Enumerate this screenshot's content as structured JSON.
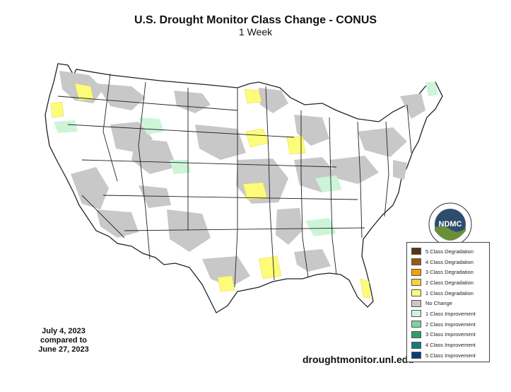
{
  "header": {
    "title": "U.S. Drought Monitor Class Change - CONUS",
    "subtitle": "1 Week"
  },
  "dates": {
    "line1": "July 4, 2023",
    "line2": "compared to",
    "line3": "June 27, 2023"
  },
  "website": "droughtmonitor.unl.edu",
  "logo": {
    "text": "NDMC",
    "ring_text": "National Drought Mitigation Center"
  },
  "legend": [
    {
      "label": "5 Class Degradation",
      "color": "#5a3310"
    },
    {
      "label": "4 Class Degradation",
      "color": "#9a5a10"
    },
    {
      "label": "3 Class Degradation",
      "color": "#f5a000"
    },
    {
      "label": "2 Class Degradation",
      "color": "#f7cf44"
    },
    {
      "label": "1 Class Degradation",
      "color": "#fdfc7a"
    },
    {
      "label": "No Change",
      "color": "#c8c8c8"
    },
    {
      "label": "1 Class Improvement",
      "color": "#ccf5d8"
    },
    {
      "label": "2 Class Improvement",
      "color": "#7bd3a0"
    },
    {
      "label": "3 Class Improvement",
      "color": "#2f9e6a"
    },
    {
      "label": "4 Class Improvement",
      "color": "#147a7a"
    },
    {
      "label": "5 Class Improvement",
      "color": "#0b3d7a"
    }
  ]
}
